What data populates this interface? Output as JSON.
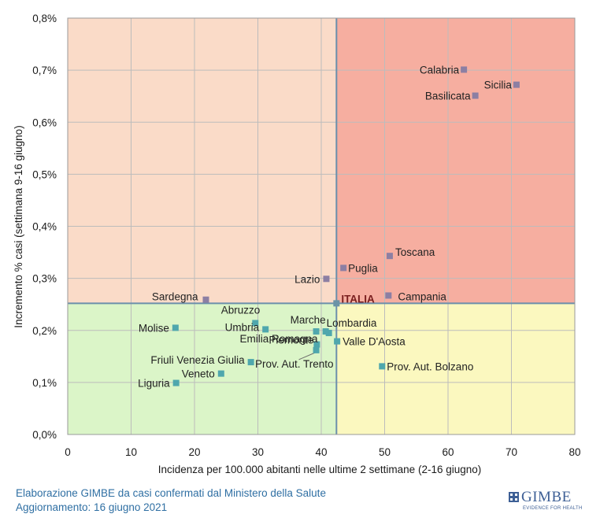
{
  "chart_data": {
    "type": "scatter",
    "xlabel": "Incidenza per 100.000 abitanti nelle ultime 2 settimane (2-16 giugno)",
    "ylabel": "Incremento % casi (settimana 9-16 giugno)",
    "xlim": [
      0,
      80
    ],
    "ylim": [
      0,
      0.008
    ],
    "xticks": [
      "0",
      "10",
      "20",
      "30",
      "40",
      "50",
      "60",
      "70",
      "80"
    ],
    "yticks": [
      "0,0%",
      "0,1%",
      "0,2%",
      "0,3%",
      "0,4%",
      "0,5%",
      "0,6%",
      "0,7%",
      "0,8%"
    ],
    "grid": true,
    "reference": {
      "label": "ITALIA",
      "x": 42.4,
      "y": 0.00252
    },
    "quadrant_colors": {
      "top_left": "#fadbc8",
      "top_right": "#f6aea0",
      "bottom_left": "#dbf5c8",
      "bottom_right": "#fbf8bf"
    },
    "marker_colors": {
      "above": "#8c7fa3",
      "below": "#4fa7ad",
      "reference": "#6b93a6"
    },
    "points": [
      {
        "label": "Calabria",
        "x": 62.5,
        "y": 0.00701
      },
      {
        "label": "Sicilia",
        "x": 70.8,
        "y": 0.00672
      },
      {
        "label": "Basilicata",
        "x": 64.3,
        "y": 0.00651
      },
      {
        "label": "Toscana",
        "x": 50.8,
        "y": 0.00343
      },
      {
        "label": "Puglia",
        "x": 43.5,
        "y": 0.0032
      },
      {
        "label": "Lazio",
        "x": 40.8,
        "y": 0.00299
      },
      {
        "label": "Campania",
        "x": 50.6,
        "y": 0.00267
      },
      {
        "label": "Sardegna",
        "x": 21.8,
        "y": 0.00259
      },
      {
        "label": "Marche",
        "x": 41.2,
        "y": 0.00195
      },
      {
        "label": "Abruzzo",
        "x": 29.6,
        "y": 0.00214
      },
      {
        "label": "Molise",
        "x": 17.0,
        "y": 0.00205
      },
      {
        "label": "Umbria",
        "x": 31.2,
        "y": 0.00202
      },
      {
        "label": "Lombardia",
        "x": 40.7,
        "y": 0.00198
      },
      {
        "label": "Emilia Romagna",
        "x": 39.2,
        "y": 0.00198
      },
      {
        "label": "Valle D'Aosta",
        "x": 42.5,
        "y": 0.00179
      },
      {
        "label": "Piemonte",
        "x": 39.3,
        "y": 0.00173
      },
      {
        "label": "Prov. Aut. Trento",
        "x": 39.2,
        "y": 0.00162
      },
      {
        "label": "Friuli Venezia Giulia",
        "x": 28.9,
        "y": 0.00139
      },
      {
        "label": "Prov. Aut. Bolzano",
        "x": 49.6,
        "y": 0.00131
      },
      {
        "label": "Veneto",
        "x": 24.2,
        "y": 0.00117
      },
      {
        "label": "Liguria",
        "x": 17.1,
        "y": 0.00099
      }
    ]
  },
  "caption": {
    "line1": "Elaborazione GIMBE da casi confermati dal Ministero della Salute",
    "line2": "Aggiornamento: 16 giugno 2021"
  },
  "logo": {
    "name": "GIMBE",
    "tagline": "EVIDENCE FOR HEALTH"
  }
}
